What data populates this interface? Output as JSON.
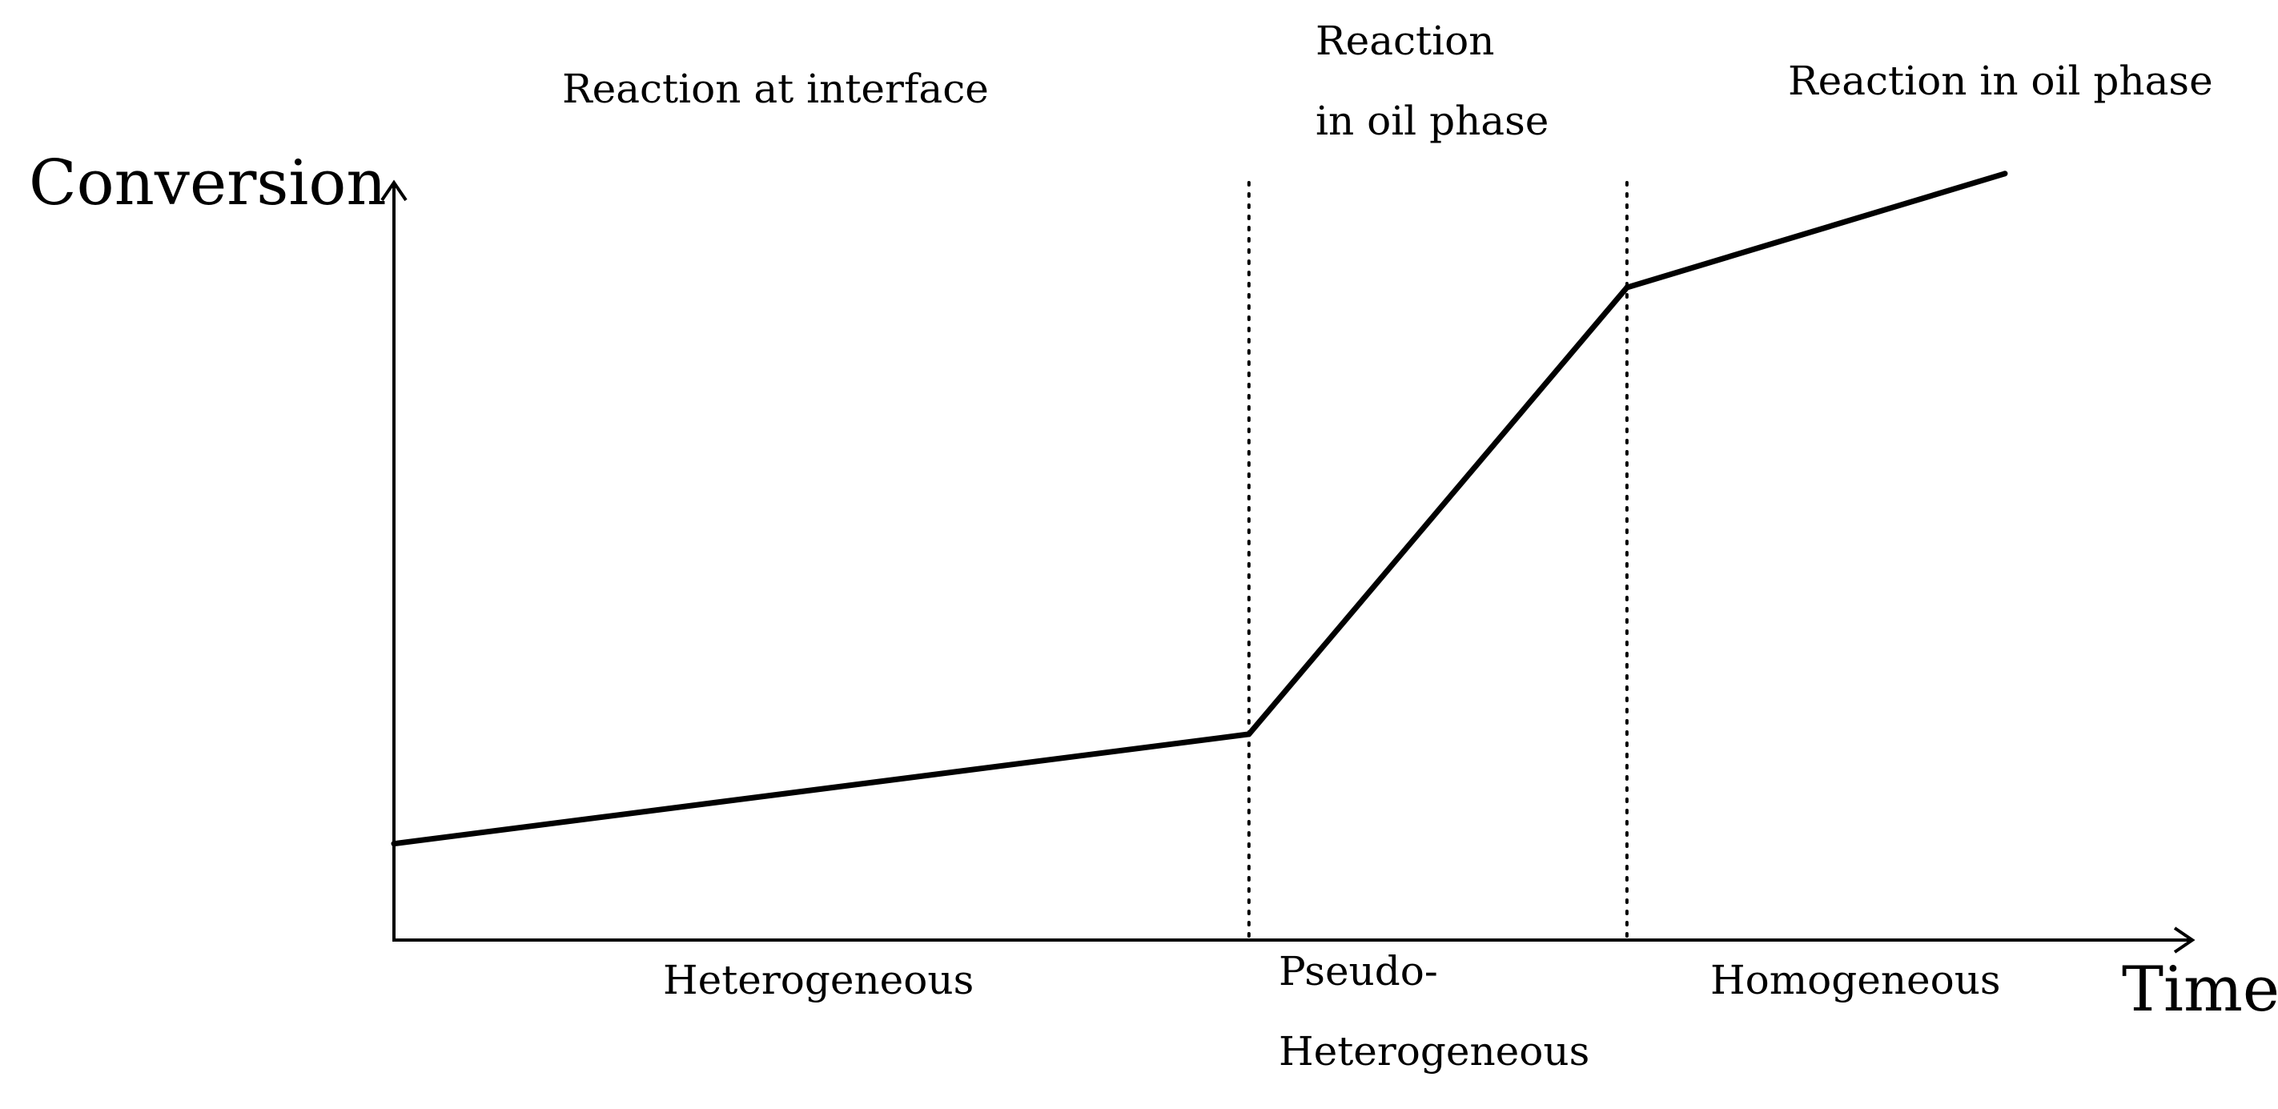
{
  "chart_data": {
    "type": "line",
    "xlabel": "Time",
    "ylabel": "Conversion",
    "grid": false,
    "series": [
      {
        "x": [
          0,
          0.475,
          0.685,
          0.895
        ],
        "values": [
          0.11,
          0.235,
          0.745,
          0.875
        ]
      }
    ],
    "region_boundaries_x": [
      0.475,
      0.685
    ],
    "regions": [
      {
        "top_label": [
          "Reaction at interface"
        ],
        "bottom_label": [
          "Heterogeneous"
        ]
      },
      {
        "top_label": [
          "Reaction",
          "in oil phase"
        ],
        "bottom_label": [
          "Pseudo-",
          "Heterogeneous"
        ]
      },
      {
        "top_label": [
          "Reaction in oil phase"
        ],
        "bottom_label": [
          "Homogeneous"
        ]
      }
    ],
    "colors": {
      "line": "#000000",
      "axes": "#000000",
      "divider": "#000000"
    }
  }
}
